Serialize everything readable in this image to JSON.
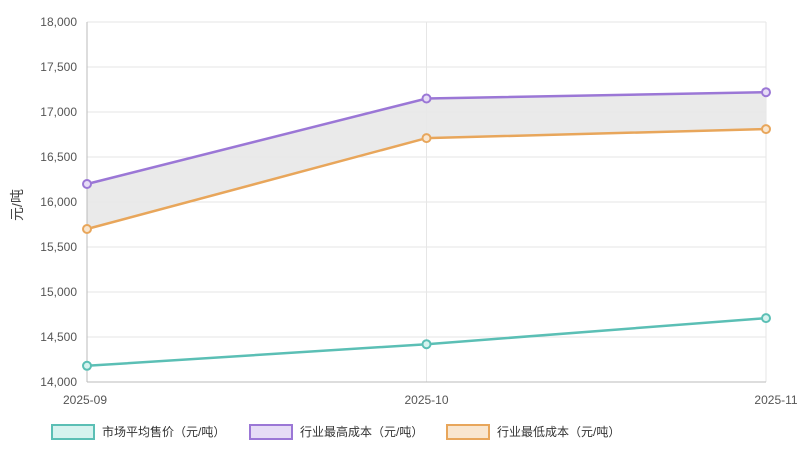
{
  "chart_data": {
    "type": "line",
    "ylabel": "元/吨",
    "x": [
      "2025-09",
      "2025-10",
      "2025-11"
    ],
    "ylim": [
      14000,
      18000
    ],
    "yticks": [
      "14,000",
      "14,500",
      "15,000",
      "15,500",
      "16,000",
      "16,500",
      "17,000",
      "17,500",
      "18,000"
    ],
    "ytick_values": [
      14000,
      14500,
      15000,
      15500,
      16000,
      16500,
      17000,
      17500,
      18000
    ],
    "grid": true,
    "legend_position": "bottom",
    "band_between": [
      "行业最高成本（元/吨）",
      "行业最低成本（元/吨）"
    ],
    "band_color": "#e8e8e8",
    "series": [
      {
        "name": "市场平均售价（元/吨）",
        "values": [
          14180,
          14420,
          14710
        ],
        "color": "#5bbfb5",
        "fill": "#d6f3ef"
      },
      {
        "name": "行业最高成本（元/吨）",
        "values": [
          16200,
          17150,
          17220
        ],
        "color": "#9b77d6",
        "fill": "#e6dcf6"
      },
      {
        "name": "行业最低成本（元/吨）",
        "values": [
          15700,
          16710,
          16810
        ],
        "color": "#e8a65b",
        "fill": "#f9e6cf"
      }
    ]
  }
}
